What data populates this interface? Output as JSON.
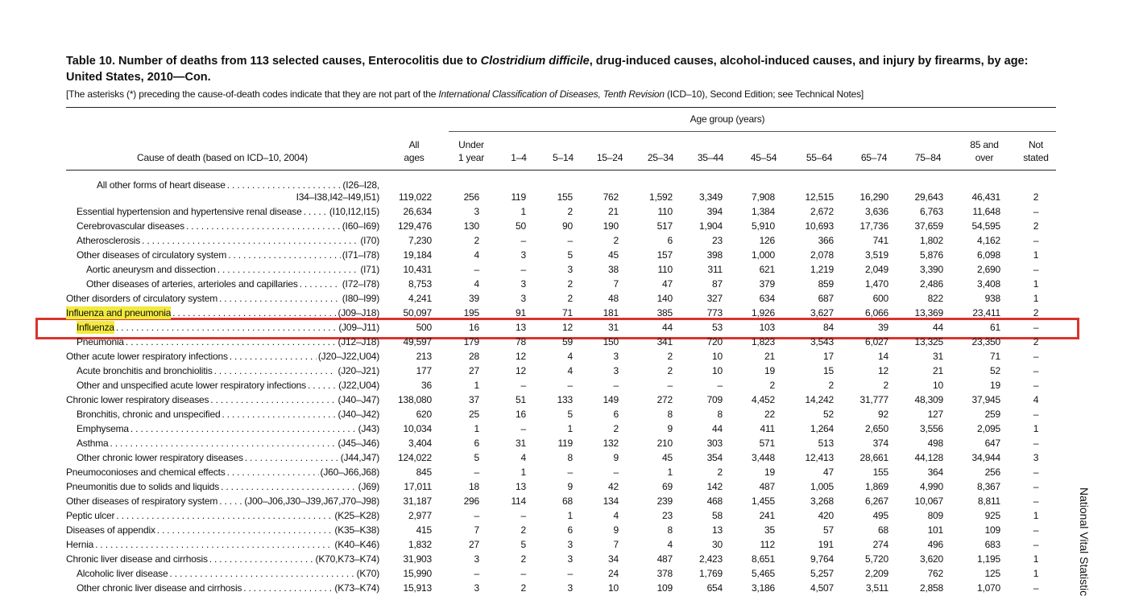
{
  "header": {
    "title": [
      "Table 10. Number of deaths from 113 selected causes, Enterocolitis due to ",
      "Clostridium difficile",
      ", drug-induced causes, alcohol-induced causes, and injury by firearms, by age: United States, 2010—Con."
    ],
    "note": [
      "[The asterisks (*) preceding the cause-of-death codes indicate that they are not part of the ",
      "International Classification of Diseases, Tenth Revision",
      " (ICD–10), Second Edition; see Technical Notes]"
    ]
  },
  "table": {
    "group_header": "Age group (years)",
    "cause_header": "Cause of death (based on ICD–10, 2004)",
    "columns": [
      [
        "All",
        "ages"
      ],
      [
        "Under",
        "1 year"
      ],
      [
        "1–4"
      ],
      [
        "5–14"
      ],
      [
        "15–24"
      ],
      [
        "25–34"
      ],
      [
        "35–44"
      ],
      [
        "45–54"
      ],
      [
        "55–64"
      ],
      [
        "65–74"
      ],
      [
        "75–84"
      ],
      [
        "85 and",
        "over"
      ],
      [
        "Not",
        "stated"
      ]
    ],
    "rows": [
      {
        "label": "All other forms of heart disease",
        "code": "(I26–I28,",
        "code_cont": "I34–I38,I42–I49,I51)",
        "values": [
          "119,022",
          "256",
          "119",
          "155",
          "762",
          "1,592",
          "3,349",
          "7,908",
          "12,515",
          "16,290",
          "29,643",
          "46,431",
          "2"
        ]
      },
      {
        "label": "Essential hypertension and hypertensive renal disease",
        "code": "(I10,I12,I15)",
        "values": [
          "26,634",
          "3",
          "1",
          "2",
          "21",
          "110",
          "394",
          "1,384",
          "2,672",
          "3,636",
          "6,763",
          "11,648",
          "–"
        ]
      },
      {
        "label": "Cerebrovascular diseases",
        "code": "(I60–I69)",
        "values": [
          "129,476",
          "130",
          "50",
          "90",
          "190",
          "517",
          "1,904",
          "5,910",
          "10,693",
          "17,736",
          "37,659",
          "54,595",
          "2"
        ]
      },
      {
        "label": "Atherosclerosis",
        "code": "(I70)",
        "values": [
          "7,230",
          "2",
          "–",
          "–",
          "2",
          "6",
          "23",
          "126",
          "366",
          "741",
          "1,802",
          "4,162",
          "–"
        ]
      },
      {
        "label": "Other diseases of circulatory system",
        "code": "(I71–I78)",
        "values": [
          "19,184",
          "4",
          "3",
          "5",
          "45",
          "157",
          "398",
          "1,000",
          "2,078",
          "3,519",
          "5,876",
          "6,098",
          "1"
        ]
      },
      {
        "label": "Aortic aneurysm and dissection",
        "code": "(I71)",
        "values": [
          "10,431",
          "–",
          "–",
          "3",
          "38",
          "110",
          "311",
          "621",
          "1,219",
          "2,049",
          "3,390",
          "2,690",
          "–"
        ]
      },
      {
        "label": "Other diseases of arteries, arterioles and capillaries",
        "code": "(I72–I78)",
        "values": [
          "8,753",
          "4",
          "3",
          "2",
          "7",
          "47",
          "87",
          "379",
          "859",
          "1,470",
          "2,486",
          "3,408",
          "1"
        ]
      },
      {
        "label": "Other disorders of circulatory system",
        "code": "(I80–I99)",
        "values": [
          "4,241",
          "39",
          "3",
          "2",
          "48",
          "140",
          "327",
          "634",
          "687",
          "600",
          "822",
          "938",
          "1"
        ]
      },
      {
        "label": "Influenza and pneumonia",
        "code": "(J09–J18)",
        "values": [
          "50,097",
          "195",
          "91",
          "71",
          "181",
          "385",
          "773",
          "1,926",
          "3,627",
          "6,066",
          "13,369",
          "23,411",
          "2"
        ]
      },
      {
        "label": "Influenza",
        "code": "(J09–J11)",
        "values": [
          "500",
          "16",
          "13",
          "12",
          "31",
          "44",
          "53",
          "103",
          "84",
          "39",
          "44",
          "61",
          "–"
        ]
      },
      {
        "label": "Pneumonia",
        "code": "(J12–J18)",
        "values": [
          "49,597",
          "179",
          "78",
          "59",
          "150",
          "341",
          "720",
          "1,823",
          "3,543",
          "6,027",
          "13,325",
          "23,350",
          "2"
        ]
      },
      {
        "label": "Other acute lower respiratory infections",
        "code": "(J20–J22,U04)",
        "values": [
          "213",
          "28",
          "12",
          "4",
          "3",
          "2",
          "10",
          "21",
          "17",
          "14",
          "31",
          "71",
          "–"
        ]
      },
      {
        "label": "Acute bronchitis and bronchiolitis",
        "code": "(J20–J21)",
        "values": [
          "177",
          "27",
          "12",
          "4",
          "3",
          "2",
          "10",
          "19",
          "15",
          "12",
          "21",
          "52",
          "–"
        ]
      },
      {
        "label": "Other and unspecified acute lower respiratory infections",
        "code": "(J22,U04)",
        "values": [
          "36",
          "1",
          "–",
          "–",
          "–",
          "–",
          "–",
          "2",
          "2",
          "2",
          "10",
          "19",
          "–"
        ]
      },
      {
        "label": "Chronic lower respiratory diseases",
        "code": "(J40–J47)",
        "values": [
          "138,080",
          "37",
          "51",
          "133",
          "149",
          "272",
          "709",
          "4,452",
          "14,242",
          "31,777",
          "48,309",
          "37,945",
          "4"
        ]
      },
      {
        "label": "Bronchitis, chronic and unspecified",
        "code": "(J40–J42)",
        "values": [
          "620",
          "25",
          "16",
          "5",
          "6",
          "8",
          "8",
          "22",
          "52",
          "92",
          "127",
          "259",
          "–"
        ]
      },
      {
        "label": "Emphysema",
        "code": "(J43)",
        "values": [
          "10,034",
          "1",
          "–",
          "1",
          "2",
          "9",
          "44",
          "411",
          "1,264",
          "2,650",
          "3,556",
          "2,095",
          "1"
        ]
      },
      {
        "label": "Asthma",
        "code": "(J45–J46)",
        "values": [
          "3,404",
          "6",
          "31",
          "119",
          "132",
          "210",
          "303",
          "571",
          "513",
          "374",
          "498",
          "647",
          "–"
        ]
      },
      {
        "label": "Other chronic lower respiratory diseases",
        "code": "(J44,J47)",
        "values": [
          "124,022",
          "5",
          "4",
          "8",
          "9",
          "45",
          "354",
          "3,448",
          "12,413",
          "28,661",
          "44,128",
          "34,944",
          "3"
        ]
      },
      {
        "label": "Pneumoconioses and chemical effects",
        "code": "(J60–J66,J68)",
        "values": [
          "845",
          "–",
          "1",
          "–",
          "–",
          "1",
          "2",
          "19",
          "47",
          "155",
          "364",
          "256",
          "–"
        ]
      },
      {
        "label": "Pneumonitis due to solids and liquids",
        "code": "(J69)",
        "values": [
          "17,011",
          "18",
          "13",
          "9",
          "42",
          "69",
          "142",
          "487",
          "1,005",
          "1,869",
          "4,990",
          "8,367",
          "–"
        ]
      },
      {
        "label": "Other diseases of respiratory system",
        "code": "(J00–J06,J30–J39,J67,J70–J98)",
        "values": [
          "31,187",
          "296",
          "114",
          "68",
          "134",
          "239",
          "468",
          "1,455",
          "3,268",
          "6,267",
          "10,067",
          "8,811",
          "–"
        ]
      },
      {
        "label": "Peptic ulcer",
        "code": "(K25–K28)",
        "values": [
          "2,977",
          "–",
          "–",
          "1",
          "4",
          "23",
          "58",
          "241",
          "420",
          "495",
          "809",
          "925",
          "1"
        ]
      },
      {
        "label": "Diseases of appendix",
        "code": "(K35–K38)",
        "values": [
          "415",
          "7",
          "2",
          "6",
          "9",
          "8",
          "13",
          "35",
          "57",
          "68",
          "101",
          "109",
          "–"
        ]
      },
      {
        "label": "Hernia",
        "code": "(K40–K46)",
        "values": [
          "1,832",
          "27",
          "5",
          "3",
          "7",
          "4",
          "30",
          "112",
          "191",
          "274",
          "496",
          "683",
          "–"
        ]
      },
      {
        "label": "Chronic liver disease and cirrhosis",
        "code": "(K70,K73–K74)",
        "values": [
          "31,903",
          "3",
          "2",
          "3",
          "34",
          "487",
          "2,423",
          "8,651",
          "9,764",
          "5,720",
          "3,620",
          "1,195",
          "1"
        ]
      },
      {
        "label": "Alcoholic liver disease",
        "code": "(K70)",
        "values": [
          "15,990",
          "–",
          "–",
          "–",
          "24",
          "378",
          "1,769",
          "5,465",
          "5,257",
          "2,209",
          "762",
          "125",
          "1"
        ]
      },
      {
        "label": "Other chronic liver disease and cirrhosis",
        "code": "(K73–K74)",
        "values": [
          "15,913",
          "3",
          "2",
          "3",
          "10",
          "109",
          "654",
          "3,186",
          "4,507",
          "3,511",
          "2,858",
          "1,070",
          "–"
        ]
      }
    ]
  },
  "side_text": "National Vital Statistic"
}
